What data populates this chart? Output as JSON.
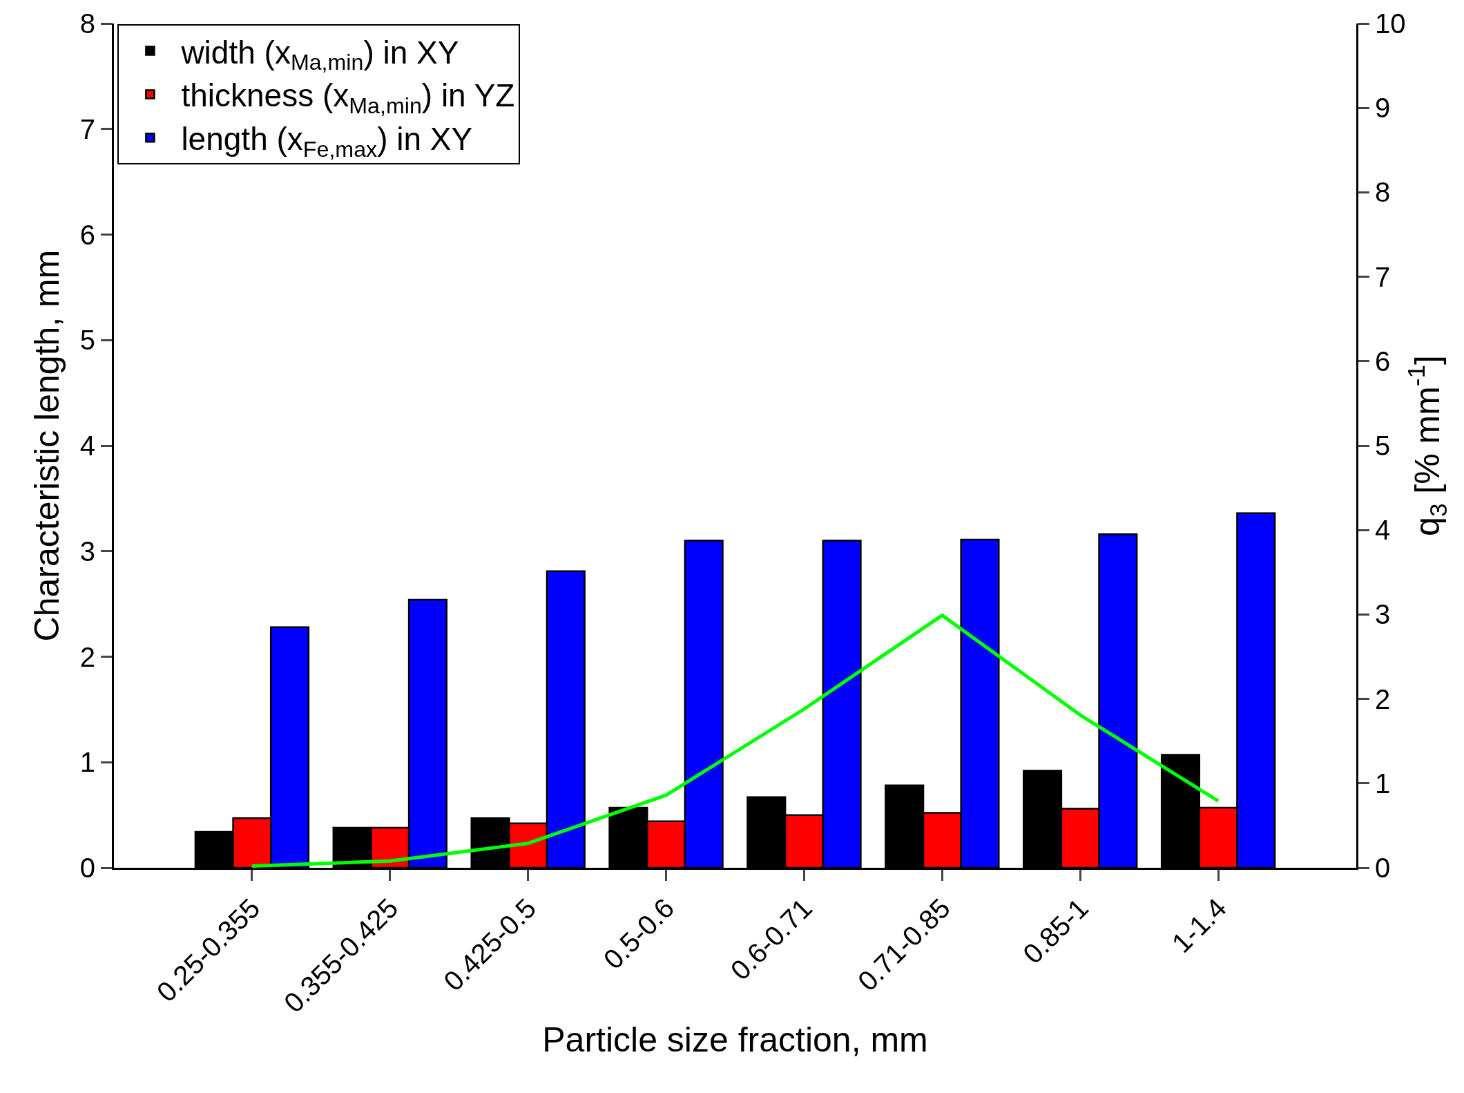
{
  "chart_data": {
    "type": "bar",
    "xlabel": "Particle size fraction, mm",
    "ylabel": "Characteristic length, mm",
    "y2label": "q$_{3}$ [% mm$^{-1}$]",
    "categories": [
      "0.25-0.355",
      "0.355-0.425",
      "0.425-0.5",
      "0.5-0.6",
      "0.6-0.71",
      "0.71-0.85",
      "0.85-1",
      "1-1.4"
    ],
    "series": [
      {
        "name": "width (x$_{Ma,min}$) in XY",
        "color": "#000000",
        "values": [
          0.34,
          0.38,
          0.47,
          0.57,
          0.67,
          0.78,
          0.92,
          1.07
        ]
      },
      {
        "name": "thickness (x$_{Ma,min}$) in YZ",
        "color": "#ff0000",
        "values": [
          0.47,
          0.38,
          0.42,
          0.44,
          0.5,
          0.52,
          0.56,
          0.57
        ]
      },
      {
        "name": "length (x$_{Fe,max}$) in XY",
        "color": "#0000ff",
        "values": [
          2.28,
          2.54,
          2.81,
          3.1,
          3.1,
          3.11,
          3.16,
          3.36
        ]
      },
      {
        "type": "line",
        "axis": "y2",
        "color": "#00ff00",
        "values": [
          0.02,
          0.08,
          0.29,
          0.86,
          1.88,
          2.99,
          1.81,
          0.79
        ]
      }
    ],
    "ylim": [
      0,
      8
    ],
    "yticks": [
      0,
      1,
      2,
      3,
      4,
      5,
      6,
      7,
      8
    ],
    "y2lim": [
      0,
      10
    ],
    "y2ticks": [
      0,
      1,
      2,
      3,
      4,
      5,
      6,
      7,
      8,
      9,
      10
    ],
    "legend": "top left",
    "marker": "none"
  }
}
